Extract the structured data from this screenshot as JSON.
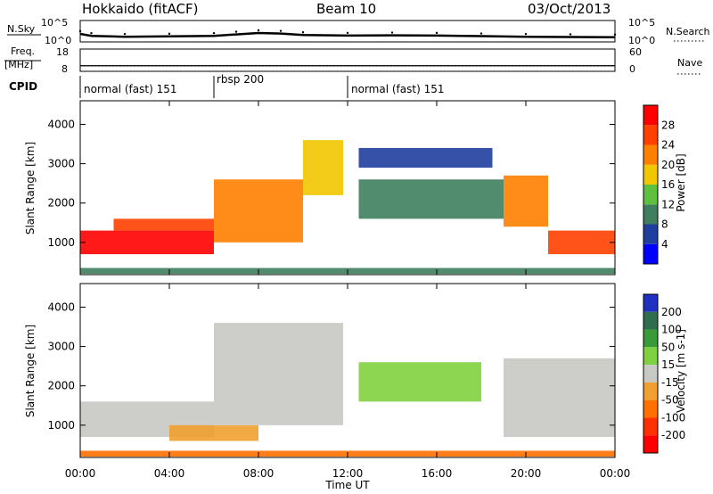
{
  "header": {
    "site": "Hokkaido (fitACF)",
    "beam": "Beam 10",
    "date": "03/Oct/2013"
  },
  "nsky_panel": {
    "left_label": "N.Sky",
    "right_label": "N.Search",
    "left_ticks": [
      "10^5",
      "10^0"
    ],
    "right_ticks": [
      "10^5",
      "10^0"
    ]
  },
  "freq_panel": {
    "left_label_1": "Freq.",
    "left_label_2": "[MHz]",
    "left_ticks": [
      "18",
      "8"
    ],
    "right_label": "Nave",
    "right_ticks": [
      "60",
      "0"
    ]
  },
  "cpid_panel": {
    "label": "CPID",
    "segments": [
      {
        "text": "normal (fast) 151",
        "start_h": 0,
        "end_h": 6
      },
      {
        "text": "rbsp 200",
        "start_h": 6,
        "end_h": 12
      },
      {
        "text": "normal (fast) 151",
        "start_h": 12,
        "end_h": 24
      }
    ]
  },
  "power_panel": {
    "ylabel": "Slant Range [km]",
    "yticks": [
      "1000",
      "2000",
      "3000",
      "4000"
    ],
    "colorbar_label": "Power [dB]",
    "colorbar_ticks": [
      "4",
      "8",
      "12",
      "16",
      "20",
      "24",
      "28"
    ],
    "colors": [
      "#0000ff",
      "#1f3f9f",
      "#3f7f5f",
      "#5fbf3f",
      "#f2c600",
      "#ff8000",
      "#ff4000",
      "#ff0000"
    ]
  },
  "velocity_panel": {
    "ylabel": "Slant Range [km]",
    "yticks": [
      "1000",
      "2000",
      "3000",
      "4000"
    ],
    "colorbar_label": "Velocity [m s-1]",
    "colorbar_ticks": [
      "200",
      "100",
      "50",
      "15",
      "-15",
      "-50",
      "-100",
      "-200"
    ],
    "colors": [
      "#2030c0",
      "#2e6e4e",
      "#3a9a3a",
      "#7fd23f",
      "#c8c8c4",
      "#f0a030",
      "#ff7000",
      "#ff3000",
      "#ff0000"
    ]
  },
  "xaxis": {
    "label": "Time UT",
    "ticks": [
      "00:00",
      "04:00",
      "08:00",
      "12:00",
      "16:00",
      "20:00",
      "00:00"
    ]
  },
  "chart_data": [
    {
      "type": "line",
      "title": "N.Sky / N.Search",
      "x_unit": "hours UT",
      "x_range": [
        0,
        24
      ],
      "series": [
        {
          "name": "N.Sky",
          "x": [
            0,
            0.5,
            2,
            4,
            6,
            7,
            8,
            9,
            10,
            12,
            14,
            16,
            18,
            20,
            22,
            24
          ],
          "y_log10": [
            2.2,
            1.5,
            1.2,
            1.3,
            1.5,
            2.0,
            2.5,
            2.3,
            1.8,
            1.6,
            1.7,
            1.6,
            1.4,
            1.2,
            1.1,
            1.0
          ]
        }
      ]
    },
    {
      "type": "line",
      "title": "Freq / Nave",
      "x_range": [
        0,
        24
      ],
      "series": [
        {
          "name": "Freq",
          "x": [
            0,
            24
          ],
          "y": [
            10.5,
            10.5
          ]
        },
        {
          "name": "Nave",
          "x": [
            0,
            24
          ],
          "y": [
            15,
            15
          ]
        }
      ]
    },
    {
      "type": "heatmap",
      "title": "Power [dB]",
      "x_unit": "hours UT",
      "x_range": [
        0,
        24
      ],
      "y_range": [
        180,
        4600
      ],
      "regions": [
        {
          "x": [
            0.0,
            6.0
          ],
          "y": [
            700,
            1300
          ],
          "power": 28
        },
        {
          "x": [
            1.5,
            6.0
          ],
          "y": [
            1300,
            1600
          ],
          "power": 26
        },
        {
          "x": [
            6.0,
            10.0
          ],
          "y": [
            1000,
            2600
          ],
          "power": 22
        },
        {
          "x": [
            10.0,
            11.8
          ],
          "y": [
            2200,
            3600
          ],
          "power": 18
        },
        {
          "x": [
            12.5,
            19.0
          ],
          "y": [
            1600,
            2600
          ],
          "power": 8
        },
        {
          "x": [
            12.5,
            18.5
          ],
          "y": [
            2900,
            3400
          ],
          "power": 6
        },
        {
          "x": [
            19.0,
            21.0
          ],
          "y": [
            1400,
            2700
          ],
          "power": 20
        },
        {
          "x": [
            21.0,
            24.0
          ],
          "y": [
            700,
            1300
          ],
          "power": 26
        },
        {
          "x": [
            0.0,
            24.0
          ],
          "y": [
            200,
            350
          ],
          "power": 10
        }
      ]
    },
    {
      "type": "heatmap",
      "title": "Velocity [m s-1]",
      "x_unit": "hours UT",
      "x_range": [
        0,
        24
      ],
      "y_range": [
        180,
        4600
      ],
      "regions": [
        {
          "x": [
            0.0,
            6.0
          ],
          "y": [
            700,
            1600
          ],
          "velocity": 0
        },
        {
          "x": [
            4.0,
            8.0
          ],
          "y": [
            600,
            1000
          ],
          "velocity": -40
        },
        {
          "x": [
            6.0,
            11.8
          ],
          "y": [
            1000,
            3600
          ],
          "velocity": 0
        },
        {
          "x": [
            12.5,
            18.0
          ],
          "y": [
            1600,
            2600
          ],
          "velocity": 40
        },
        {
          "x": [
            19.0,
            24.0
          ],
          "y": [
            700,
            2700
          ],
          "velocity": 0
        },
        {
          "x": [
            0.0,
            24.0
          ],
          "y": [
            200,
            350
          ],
          "velocity": -60
        }
      ]
    }
  ]
}
